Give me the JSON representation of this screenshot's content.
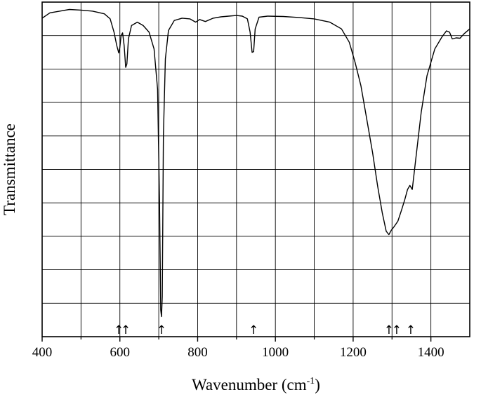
{
  "chart_data": {
    "type": "line",
    "xlabel": "Wavenumber (cm",
    "xlabel_sup": "-1",
    "xlabel_close": ")",
    "ylabel": "Transmittance",
    "xlim": [
      400,
      1500
    ],
    "ylim": [
      0,
      100
    ],
    "x_ticks": [
      400,
      600,
      800,
      1000,
      1200,
      1400
    ],
    "x_tick_labels": [
      "400",
      "600",
      "800",
      "1000",
      "1200",
      "1400"
    ],
    "x_gridlines": [
      500,
      600,
      700,
      800,
      900,
      1000,
      1100,
      1200,
      1300,
      1400
    ],
    "y_gridlines": [
      10,
      20,
      30,
      40,
      50,
      60,
      70,
      80,
      90
    ],
    "grid": true,
    "y_tick_labels_shown": false,
    "line_color": "#000000",
    "series": [
      {
        "points": [
          [
            400,
            95.2
          ],
          [
            420,
            96.8
          ],
          [
            450,
            97.4
          ],
          [
            470,
            97.8
          ],
          [
            500,
            97.6
          ],
          [
            530,
            97.3
          ],
          [
            560,
            96.5
          ],
          [
            575,
            95.0
          ],
          [
            585,
            91.0
          ],
          [
            592,
            87.0
          ],
          [
            597,
            84.8
          ],
          [
            600,
            86.5
          ],
          [
            603,
            90.0
          ],
          [
            607,
            90.8
          ],
          [
            611,
            87.0
          ],
          [
            615,
            80.5
          ],
          [
            618,
            81.5
          ],
          [
            622,
            89.0
          ],
          [
            630,
            93.0
          ],
          [
            645,
            94.0
          ],
          [
            660,
            93.0
          ],
          [
            675,
            91.0
          ],
          [
            688,
            86.0
          ],
          [
            697,
            74.0
          ],
          [
            702,
            40.0
          ],
          [
            705,
            8.0
          ],
          [
            707,
            6.0
          ],
          [
            709,
            12.0
          ],
          [
            712,
            60.0
          ],
          [
            717,
            83.0
          ],
          [
            725,
            91.5
          ],
          [
            740,
            94.5
          ],
          [
            760,
            95.2
          ],
          [
            780,
            95.0
          ],
          [
            795,
            94.0
          ],
          [
            805,
            94.8
          ],
          [
            820,
            94.2
          ],
          [
            840,
            95.2
          ],
          [
            860,
            95.6
          ],
          [
            880,
            95.8
          ],
          [
            900,
            96.0
          ],
          [
            915,
            95.8
          ],
          [
            928,
            95.0
          ],
          [
            935,
            91.0
          ],
          [
            940,
            85.0
          ],
          [
            944,
            85.2
          ],
          [
            948,
            92.0
          ],
          [
            958,
            95.5
          ],
          [
            980,
            95.8
          ],
          [
            1020,
            95.7
          ],
          [
            1060,
            95.4
          ],
          [
            1100,
            95.0
          ],
          [
            1140,
            94.0
          ],
          [
            1170,
            92.0
          ],
          [
            1190,
            88.0
          ],
          [
            1205,
            82.0
          ],
          [
            1220,
            75.0
          ],
          [
            1235,
            65.0
          ],
          [
            1250,
            55.0
          ],
          [
            1263,
            45.0
          ],
          [
            1275,
            37.0
          ],
          [
            1285,
            31.5
          ],
          [
            1292,
            30.5
          ],
          [
            1298,
            31.8
          ],
          [
            1305,
            32.8
          ],
          [
            1315,
            34.5
          ],
          [
            1325,
            38.0
          ],
          [
            1333,
            41.0
          ],
          [
            1340,
            44.0
          ],
          [
            1346,
            45.2
          ],
          [
            1352,
            44.0
          ],
          [
            1360,
            52.0
          ],
          [
            1375,
            67.0
          ],
          [
            1390,
            78.0
          ],
          [
            1410,
            86.0
          ],
          [
            1428,
            89.5
          ],
          [
            1440,
            91.4
          ],
          [
            1448,
            91.0
          ],
          [
            1455,
            89.0
          ],
          [
            1465,
            89.3
          ],
          [
            1475,
            89.2
          ],
          [
            1485,
            90.5
          ],
          [
            1500,
            92.0
          ]
        ]
      }
    ],
    "marked_peaks": [
      597,
      615,
      707,
      944,
      1292,
      1312,
      1348
    ],
    "peak_marker_glyph": "↑"
  }
}
